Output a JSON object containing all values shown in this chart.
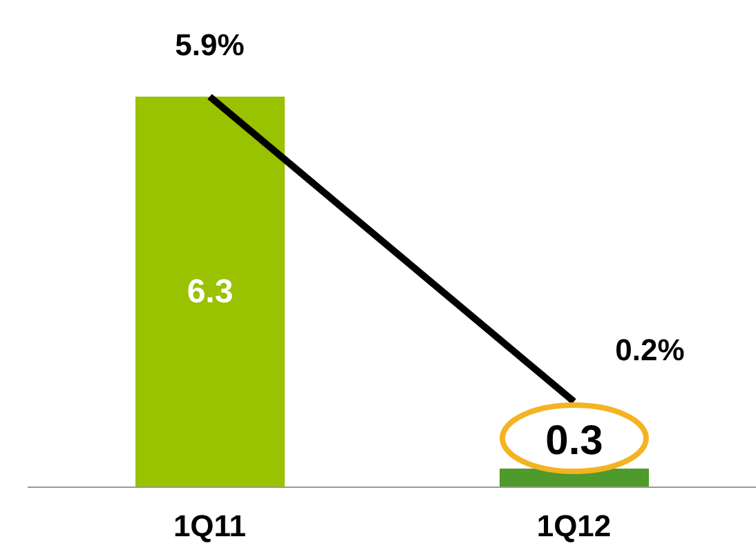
{
  "chart_data": {
    "type": "bar",
    "categories": [
      "1Q11",
      "1Q12"
    ],
    "series": [
      {
        "colors": [
          "#99c200",
          "#4e9a2a"
        ],
        "values": [
          6.3,
          0.3
        ],
        "value_labels": [
          "6.3",
          "0.3"
        ]
      },
      {
        "type": "line",
        "axis": "y2",
        "color": "#000000",
        "values": [
          5.9,
          0.2
        ],
        "value_labels": [
          "5.9%",
          "0.2%"
        ],
        "marker": "none"
      }
    ]
  }
}
